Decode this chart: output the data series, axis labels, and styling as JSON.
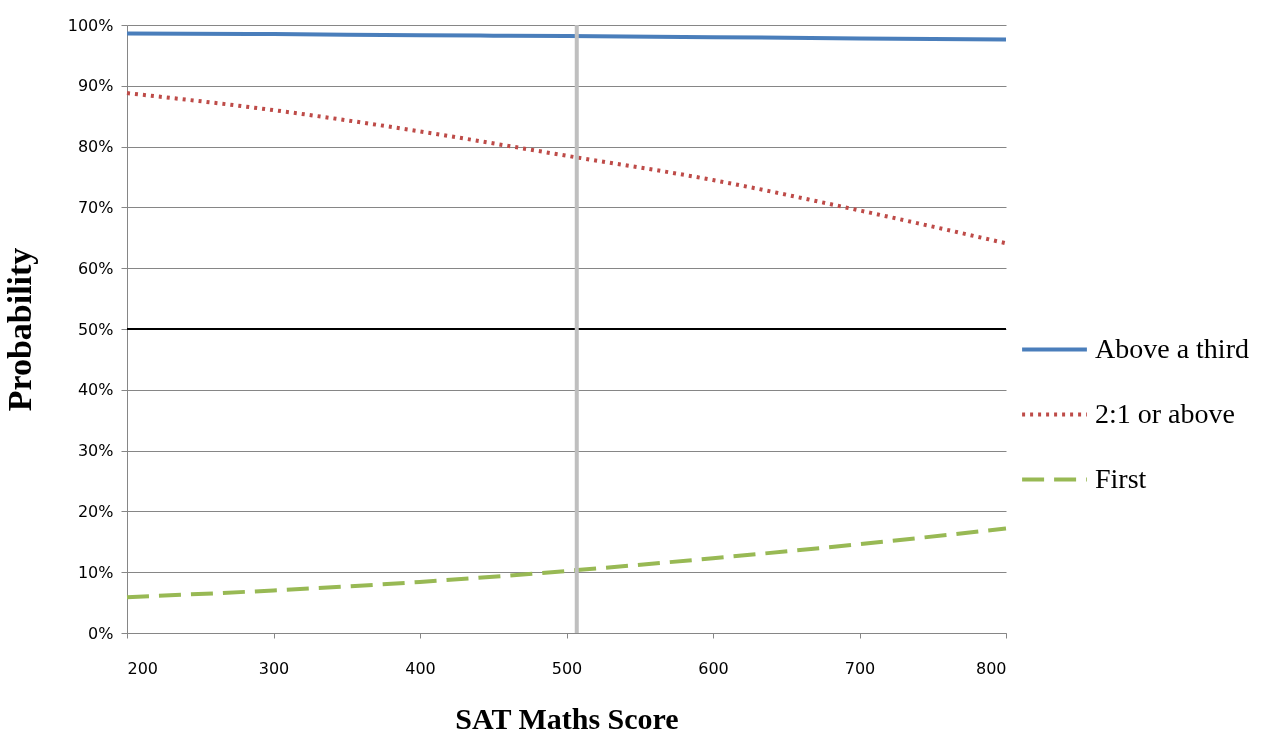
{
  "chart_data": {
    "type": "line",
    "xlabel": "SAT Maths Score",
    "ylabel": "Probability",
    "x": [
      200,
      300,
      400,
      500,
      600,
      700,
      800
    ],
    "series": [
      {
        "name": "Above a third",
        "color": "#4a7ebb",
        "line_style": "solid",
        "values": [
          98.6,
          98.5,
          98.3,
          98.2,
          98.0,
          97.8,
          97.6
        ]
      },
      {
        "name": "2:1 or above",
        "color": "#be4b48",
        "line_style": "dotted",
        "values": [
          88.8,
          86.0,
          82.5,
          78.5,
          74.5,
          69.5,
          64.1
        ]
      },
      {
        "name": "First",
        "color": "#98b954",
        "line_style": "dashed",
        "values": [
          5.9,
          7.0,
          8.4,
          10.2,
          12.3,
          14.6,
          17.2
        ]
      }
    ],
    "xlim": [
      200,
      800
    ],
    "xticks": [
      200,
      300,
      400,
      500,
      600,
      700,
      800
    ],
    "ylim": [
      0,
      100
    ],
    "yticks": [
      {
        "value": 0,
        "label": "0%"
      },
      {
        "value": 10,
        "label": "10%"
      },
      {
        "value": 20,
        "label": "20%"
      },
      {
        "value": 30,
        "label": "30%"
      },
      {
        "value": 40,
        "label": "40%"
      },
      {
        "value": 50,
        "label": "50%"
      },
      {
        "value": 60,
        "label": "60%"
      },
      {
        "value": 70,
        "label": "70%"
      },
      {
        "value": 80,
        "label": "80%"
      },
      {
        "value": 90,
        "label": "90%"
      },
      {
        "value": 100,
        "label": "100%"
      }
    ],
    "grid": "y",
    "legend": "right",
    "marker": "none",
    "ref_lines": [
      {
        "axis": "y",
        "value": 50,
        "color": "#000000"
      },
      {
        "axis": "x",
        "value": 507,
        "color": "#bfbfbf"
      }
    ]
  }
}
